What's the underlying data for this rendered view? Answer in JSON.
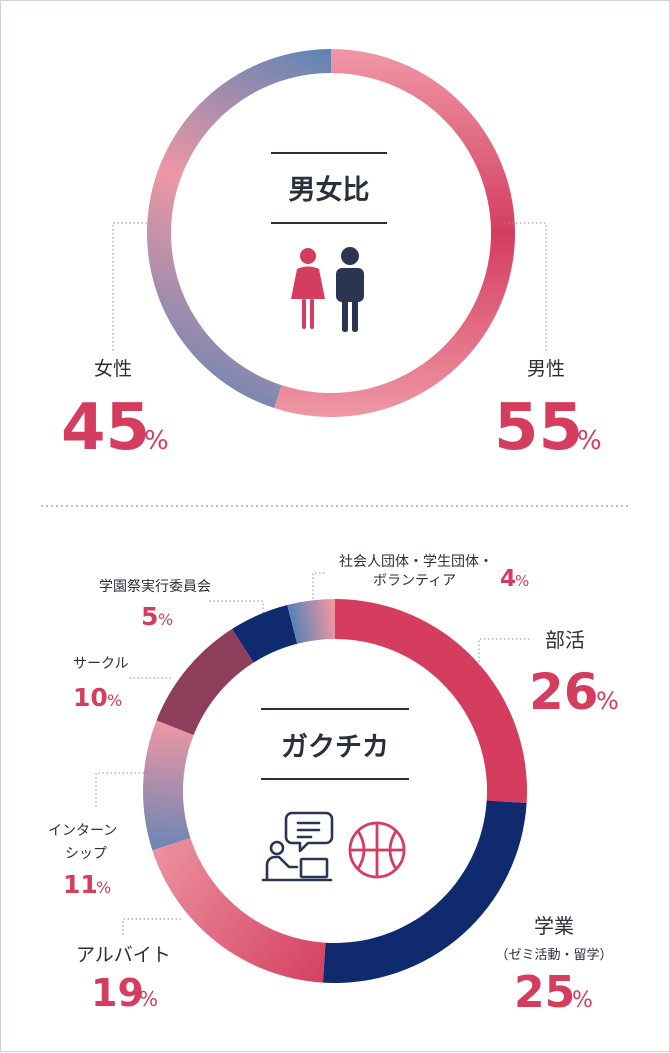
{
  "colors": {
    "red": "#d43d5e",
    "pink": "#ee97a4",
    "navy": "#0f2a6e",
    "slate_blue": "#5f84b4",
    "wine": "#8e3d5a",
    "dark": "#2b2f3a"
  },
  "chart_data": [
    {
      "type": "pie",
      "title": "男女比",
      "icon": "male-female-icon",
      "slices": [
        {
          "label": "男性",
          "value": 55,
          "value_label": "55",
          "unit": "%"
        },
        {
          "label": "女性",
          "value": 45,
          "value_label": "45",
          "unit": "%"
        }
      ]
    },
    {
      "type": "pie",
      "title": "ガクチカ",
      "icons": [
        "online-meeting-icon",
        "basketball-icon"
      ],
      "slices": [
        {
          "label": "部活",
          "value": 26,
          "value_label": "26",
          "unit": "%"
        },
        {
          "label": "学業",
          "sublabel": "（ゼミ活動・留学）",
          "value": 25,
          "value_label": "25",
          "unit": "%"
        },
        {
          "label": "アルバイト",
          "value": 19,
          "value_label": "19",
          "unit": "%"
        },
        {
          "label": "インターン",
          "label2": "シップ",
          "value": 11,
          "value_label": "11",
          "unit": "%"
        },
        {
          "label": "サークル",
          "value": 10,
          "value_label": "10",
          "unit": "%"
        },
        {
          "label": "学園祭実行委員会",
          "value": 5,
          "value_label": "5",
          "unit": "%"
        },
        {
          "label": "社会人団体・学生団体・",
          "label2": "ボランティア",
          "value": 4,
          "value_label": "4",
          "unit": "%"
        }
      ]
    }
  ]
}
